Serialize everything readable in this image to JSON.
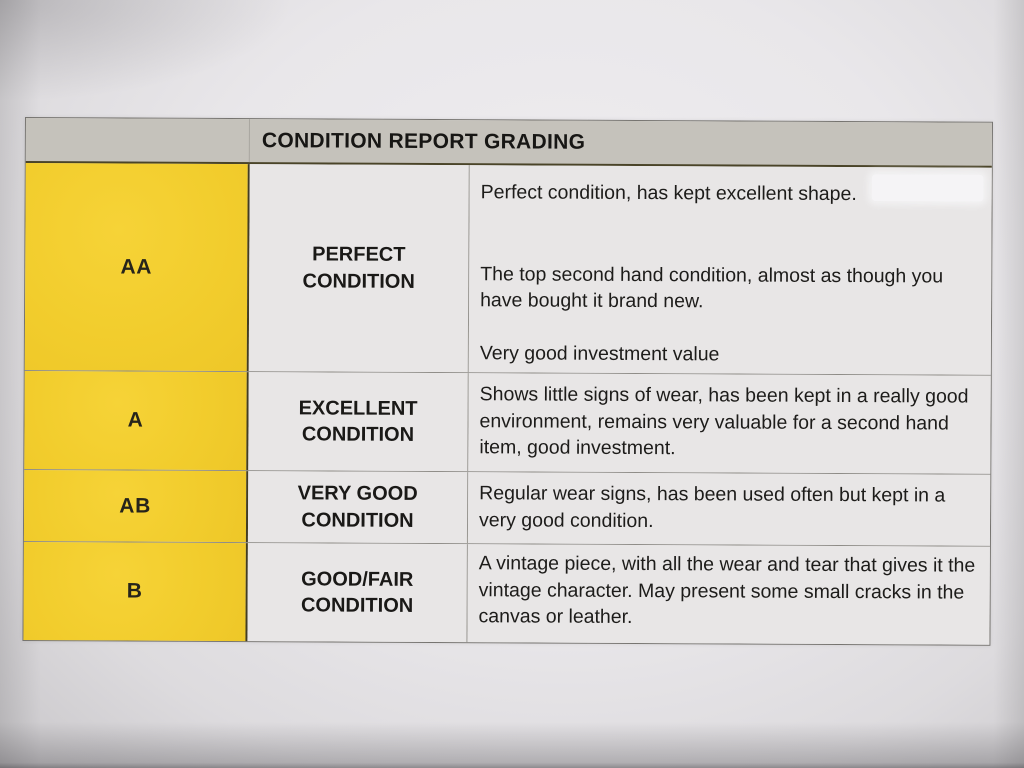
{
  "table": {
    "title": "CONDITION REPORT GRADING",
    "rows": [
      {
        "grade": "AA",
        "label": "PERFECT CONDITION",
        "description": [
          "Perfect condition, has kept excellent shape.",
          "The top second hand condition, almost as though you have bought it brand new.",
          "Very good investment value"
        ]
      },
      {
        "grade": "A",
        "label": "EXCELLENT CONDITION",
        "description": [
          "Shows little signs of wear, has been kept in a really good environment, remains very valuable for a second hand item, good investment."
        ]
      },
      {
        "grade": "AB",
        "label": "VERY GOOD CONDITION",
        "description": [
          "Regular wear signs, has been used often but kept in a very good condition."
        ]
      },
      {
        "grade": "B",
        "label": "GOOD/FAIR CONDITION",
        "description": [
          "A vintage piece, with all the wear and tear that gives it the vintage character. May present some small cracks in the canvas or leather."
        ]
      }
    ]
  },
  "colors": {
    "grade_cell_yellow": "#f2cd2d",
    "header_gray": "#c5c2bb",
    "cell_gray": "#e8e6e6",
    "paper": "#e9e7ea",
    "text": "#1c1b19"
  }
}
